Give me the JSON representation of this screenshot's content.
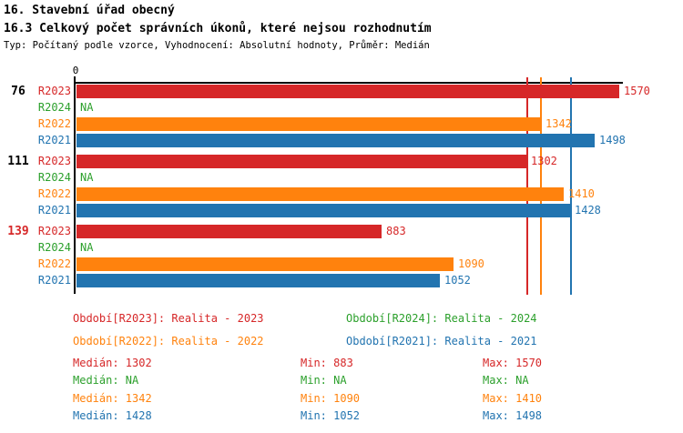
{
  "header": {
    "title1": "16. Stavební úřad obecný",
    "title2": "16.3 Celkový počet správních úkonů, které nejsou rozhodnutím",
    "subtitle": "Typ: Počítaný podle vzorce, Vyhodnocení: Absolutní hodnoty, Průměr: Medián"
  },
  "colors": {
    "r2023": "#d62728",
    "r2024": "#2ca02c",
    "r2022": "#ff820d",
    "r2021": "#2274b0",
    "axis": "#000000",
    "group_label_highlight": "#d62728",
    "group_label_default": "#000000"
  },
  "chart_data": {
    "type": "bar",
    "orientation": "horizontal",
    "title": "16.3 Celkový počet správních úkonů, které nejsou rozhodnutím",
    "axis_origin_label": "0",
    "xlim": [
      0,
      1580
    ],
    "grid": false,
    "categories": [
      "76",
      "111",
      "139"
    ],
    "category_colors": [
      "#000000",
      "#000000",
      "#d62728"
    ],
    "series": [
      {
        "name": "R2023",
        "color": "#d62728",
        "values": [
          1570,
          1302,
          883
        ],
        "display": [
          "1570",
          "1302",
          "883"
        ],
        "median": 1302,
        "min": 883,
        "max": 1570
      },
      {
        "name": "R2024",
        "color": "#2ca02c",
        "values": [
          null,
          null,
          null
        ],
        "display": [
          "NA",
          "NA",
          "NA"
        ],
        "median": null,
        "min": null,
        "max": null
      },
      {
        "name": "R2022",
        "color": "#ff820d",
        "values": [
          1342,
          1410,
          1090
        ],
        "display": [
          "1342",
          "1410",
          "1090"
        ],
        "median": 1342,
        "min": 1090,
        "max": 1410
      },
      {
        "name": "R2021",
        "color": "#2274b0",
        "values": [
          1498,
          1428,
          1052
        ],
        "display": [
          "1498",
          "1428",
          "1052"
        ],
        "median": 1428,
        "min": 1052,
        "max": 1498
      }
    ],
    "median_lines": [
      {
        "series": "R2023",
        "value": 1302,
        "color": "#d62728"
      },
      {
        "series": "R2022",
        "value": 1342,
        "color": "#ff820d"
      },
      {
        "series": "R2021",
        "value": 1428,
        "color": "#2274b0"
      }
    ],
    "legend_position": "bottom"
  },
  "legend": [
    {
      "label": "Období[R2023]: Realita - 2023",
      "color": "#d62728"
    },
    {
      "label": "Období[R2024]: Realita - 2024",
      "color": "#2ca02c"
    },
    {
      "label": "Období[R2022]: Realita - 2022",
      "color": "#ff820d"
    },
    {
      "label": "Období[R2021]: Realita - 2021",
      "color": "#2274b0"
    }
  ],
  "stats": {
    "median_label": "Medián",
    "min_label": "Min",
    "max_label": "Max",
    "rows": [
      {
        "series": "R2023",
        "color": "#d62728",
        "median": "1302",
        "min": "883",
        "max": "1570"
      },
      {
        "series": "R2024",
        "color": "#2ca02c",
        "median": "NA",
        "min": "NA",
        "max": "NA"
      },
      {
        "series": "R2022",
        "color": "#ff820d",
        "median": "1342",
        "min": "1090",
        "max": "1410"
      },
      {
        "series": "R2021",
        "color": "#2274b0",
        "median": "1428",
        "min": "1052",
        "max": "1498"
      }
    ]
  }
}
